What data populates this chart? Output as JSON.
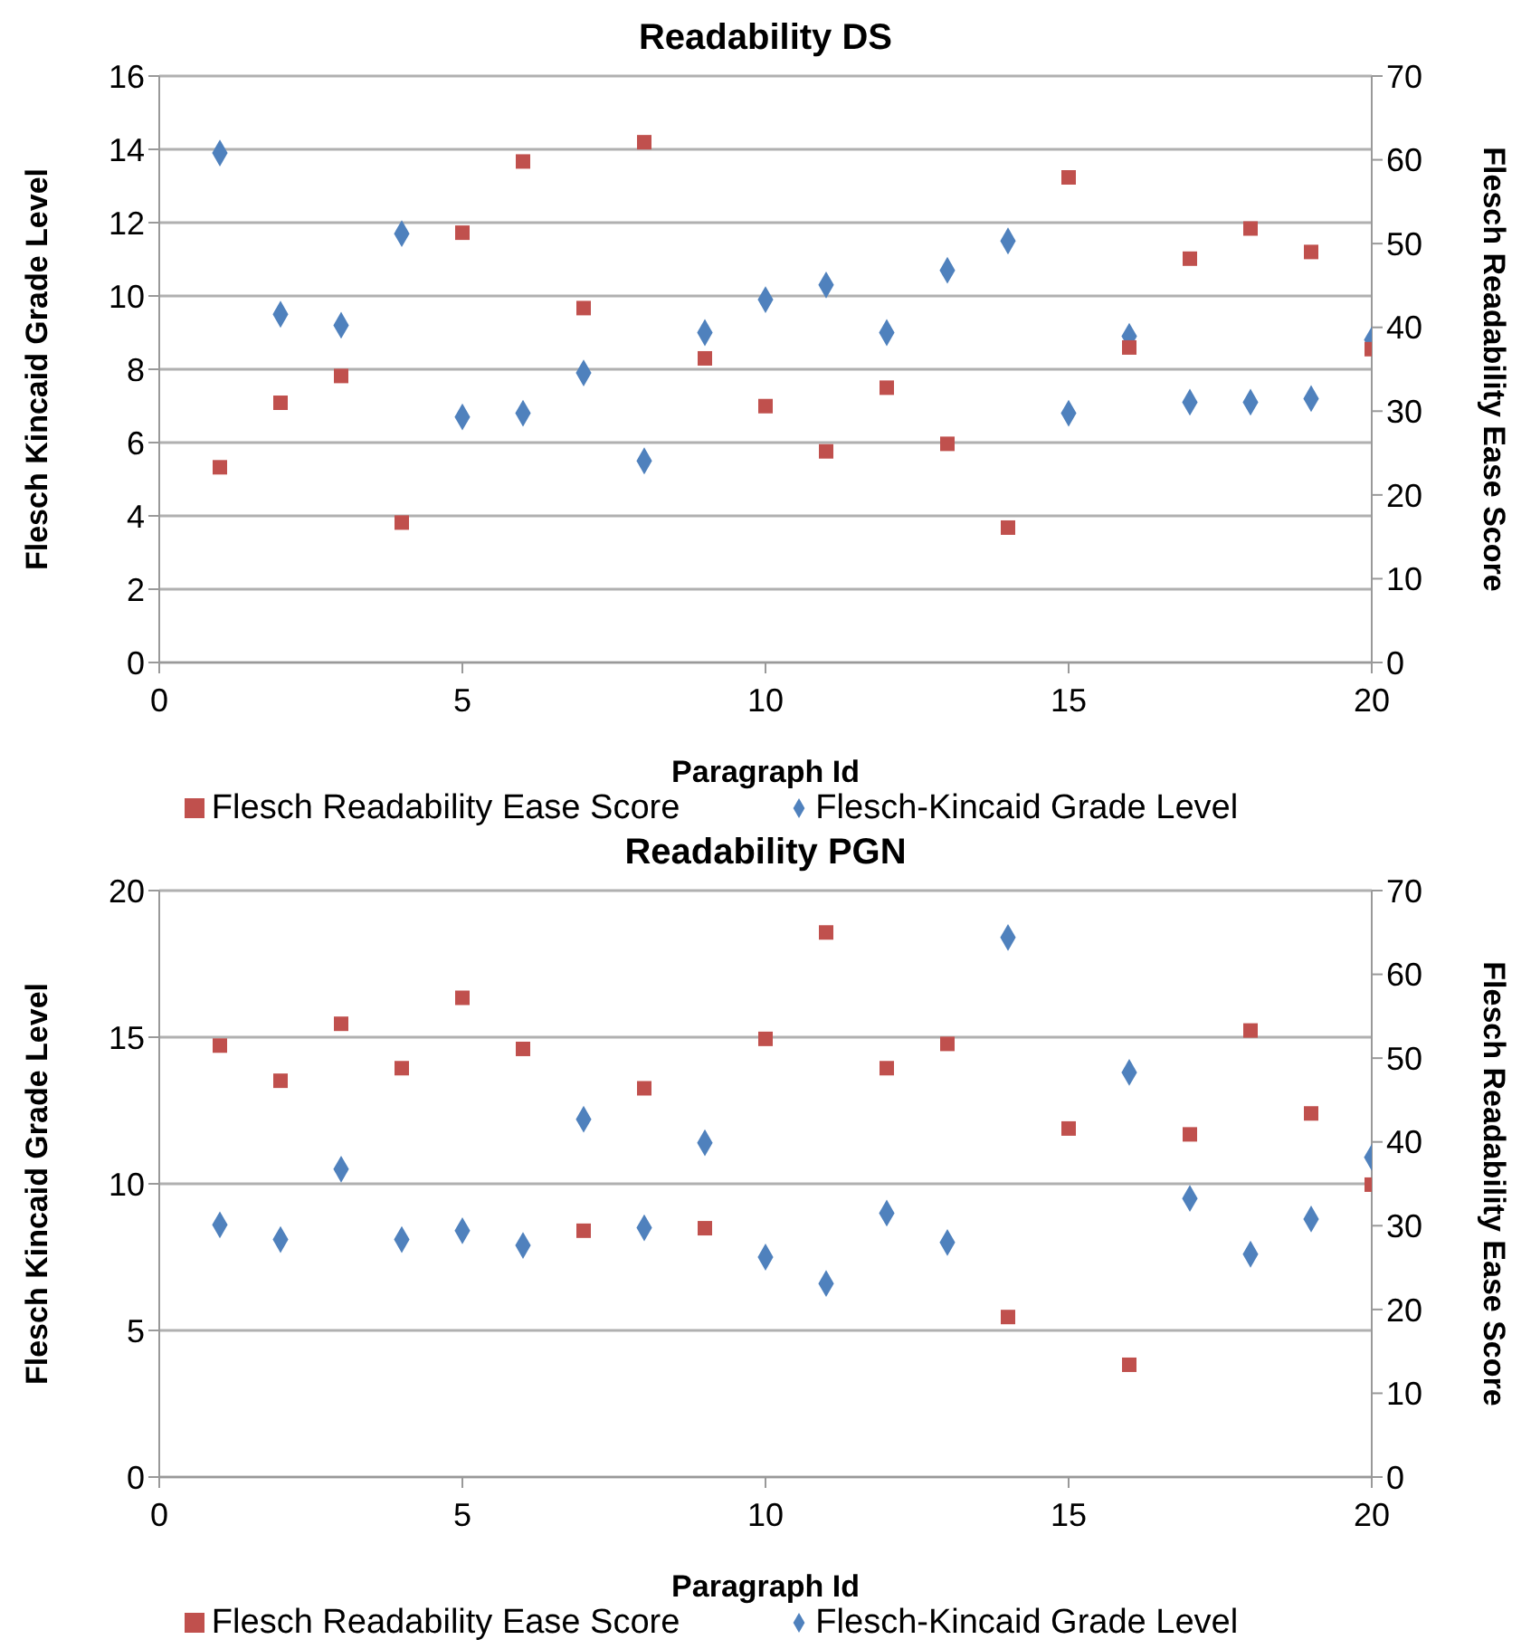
{
  "chart_data": [
    {
      "type": "scatter",
      "title": "Readability DS",
      "xlabel": "Paragraph Id",
      "ylabel": "Flesch Kincaid Grade Level",
      "y2label": "Flesch Readability Ease Score",
      "x": [
        1,
        2,
        3,
        4,
        5,
        6,
        7,
        8,
        9,
        10,
        11,
        12,
        13,
        14,
        15,
        16,
        17,
        18,
        19,
        20
      ],
      "xlim": [
        0,
        20
      ],
      "xticks": [
        0,
        5,
        10,
        15,
        20
      ],
      "ylim": [
        0,
        16
      ],
      "yticks": [
        0,
        2,
        4,
        6,
        8,
        10,
        12,
        14,
        16
      ],
      "y2lim": [
        0,
        70
      ],
      "y2ticks": [
        0,
        10,
        20,
        30,
        40,
        50,
        60,
        70
      ],
      "grid": "y",
      "legend": "bottom",
      "series": [
        {
          "name": "Flesch-Kincaid Grade Level",
          "color": "#4f81bd",
          "marker": "diamond",
          "values": [
            13.9,
            9.5,
            9.2,
            11.7,
            6.7,
            6.8,
            7.9,
            5.5,
            9.0,
            9.9,
            10.3,
            9.0,
            10.7,
            11.5,
            6.8,
            8.9,
            7.1,
            7.1,
            7.2,
            8.8
          ]
        },
        {
          "name": "Flesch Readability Ease Score",
          "color": "#c0504d",
          "marker": "square",
          "axis": "y2",
          "values": [
            23.3,
            31.0,
            34.2,
            16.7,
            51.3,
            59.8,
            42.3,
            62.1,
            36.3,
            30.6,
            25.2,
            32.8,
            26.1,
            16.1,
            57.9,
            37.6,
            48.2,
            51.8,
            49.0,
            37.4
          ]
        }
      ]
    },
    {
      "type": "scatter",
      "title": "Readability PGN",
      "xlabel": "Paragraph Id",
      "ylabel": "Flesch Kincaid Grade Level",
      "y2label": "Flesch Readability Ease Score",
      "x": [
        1,
        2,
        3,
        4,
        5,
        6,
        7,
        8,
        9,
        10,
        11,
        12,
        13,
        14,
        15,
        16,
        17,
        18,
        19,
        20
      ],
      "xlim": [
        0,
        20
      ],
      "xticks": [
        0,
        5,
        10,
        15,
        20
      ],
      "ylim": [
        0,
        20
      ],
      "yticks": [
        0,
        5,
        10,
        15,
        20
      ],
      "y2lim": [
        0,
        70
      ],
      "y2ticks": [
        0,
        10,
        20,
        30,
        40,
        50,
        60,
        70
      ],
      "grid": "y",
      "legend": "bottom",
      "series": [
        {
          "name": "Flesch-Kincaid Grade Level",
          "color": "#4f81bd",
          "marker": "diamond",
          "values": [
            8.6,
            8.1,
            10.5,
            8.1,
            8.4,
            7.9,
            12.2,
            8.5,
            11.4,
            7.5,
            6.6,
            9.0,
            8.0,
            18.4,
            null,
            13.8,
            9.5,
            7.6,
            8.8,
            10.9
          ]
        },
        {
          "name": "Flesch Readability Ease Score",
          "color": "#c0504d",
          "marker": "square",
          "axis": "y2",
          "values": [
            51.5,
            47.3,
            54.1,
            48.8,
            57.2,
            51.1,
            29.4,
            46.4,
            29.7,
            52.3,
            65.0,
            48.8,
            51.7,
            19.1,
            41.6,
            13.4,
            40.9,
            53.3,
            43.4,
            34.9
          ]
        }
      ]
    }
  ]
}
